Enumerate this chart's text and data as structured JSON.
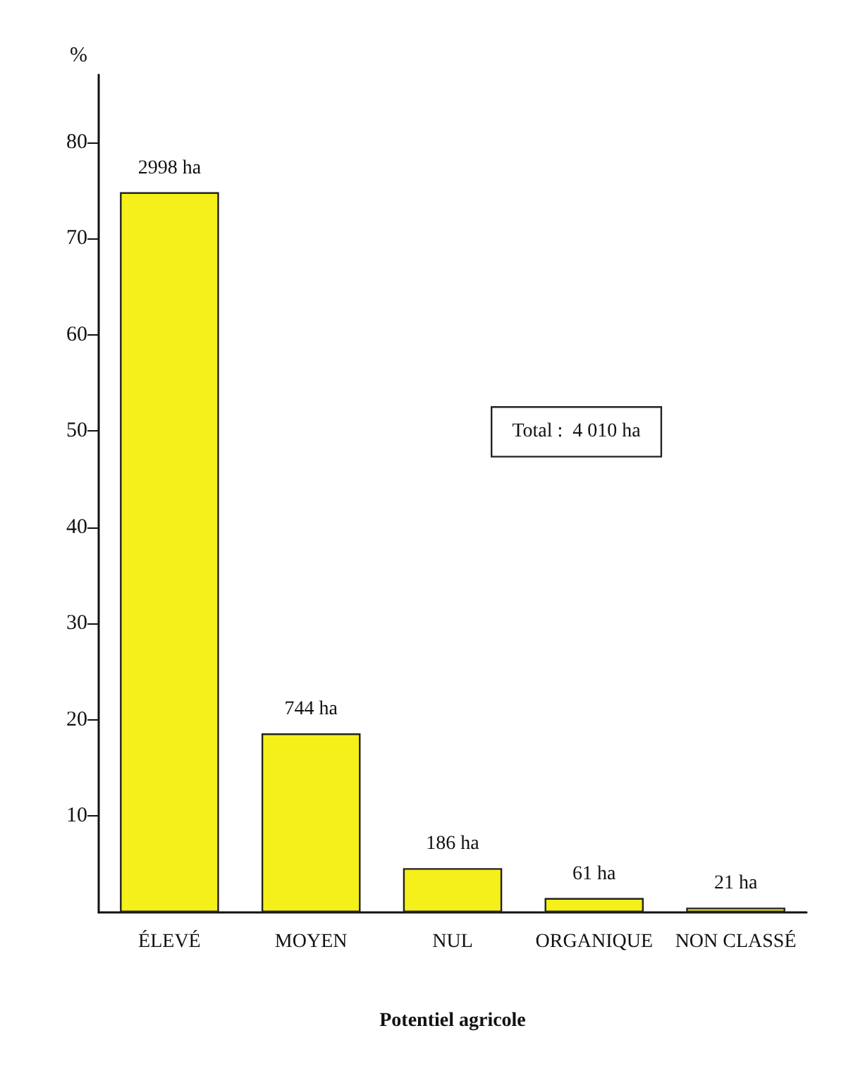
{
  "chart_data": {
    "type": "bar",
    "xlabel": "Potentiel agricole",
    "ylabel": "%",
    "categories": [
      "ÉLEVÉ",
      "MOYEN",
      "NUL",
      "ORGANIQUE",
      "NON CLASSÉ"
    ],
    "values": [
      74.8,
      18.6,
      4.6,
      1.5,
      0.5
    ],
    "color": "#f5ef1a",
    "ylim": [
      0,
      87
    ],
    "yticks": [
      10,
      20,
      30,
      40,
      50,
      60,
      70,
      80
    ],
    "grid": false,
    "annotations": [
      "Total :  4 010 ha",
      {
        "text": "2998 ha",
        "x": "ÉLEVÉ",
        "y": 74.8
      },
      {
        "text": "744 ha",
        "x": "MOYEN",
        "y": 18.6
      },
      {
        "text": "186 ha",
        "x": "NUL",
        "y": 4.6
      },
      {
        "text": "61 ha",
        "x": "ORGANIQUE",
        "y": 1.5
      },
      {
        "text": "21 ha",
        "x": "NON CLASSÉ",
        "y": 0.5
      }
    ]
  }
}
